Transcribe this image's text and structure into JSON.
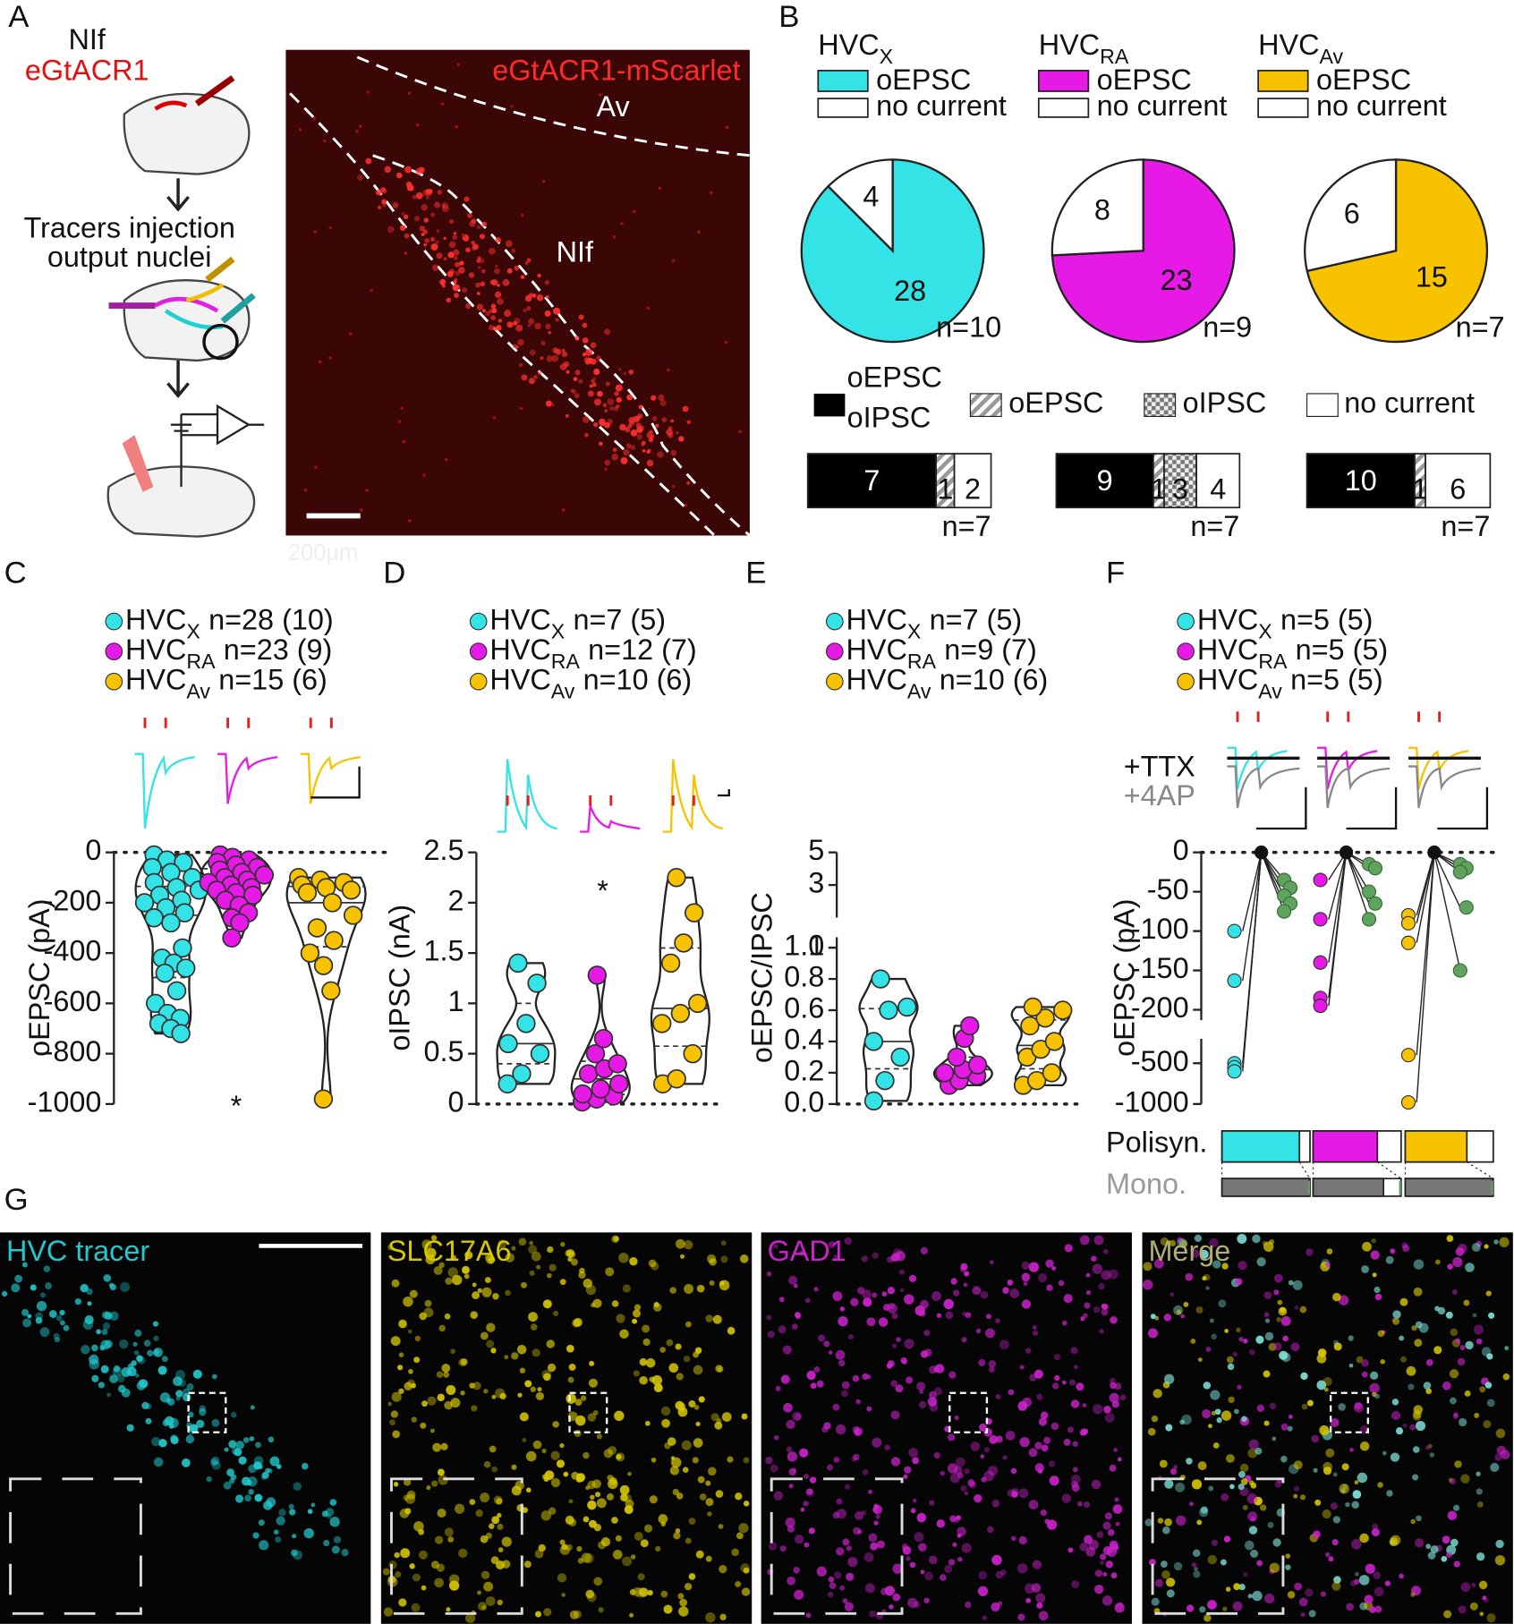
{
  "groups": [
    {
      "name": "HVC",
      "sub": "X",
      "color": "#33e3e6"
    },
    {
      "name": "HVC",
      "sub": "RA",
      "color": "#e619e6"
    },
    {
      "name": "HVC",
      "sub": "Av",
      "color": "#f7c200"
    }
  ],
  "panel_labels": [
    "A",
    "B",
    "C",
    "D",
    "E",
    "F",
    "G"
  ],
  "panel_a": {
    "top_label": "NIf",
    "virus": "eGtACR1",
    "step2": [
      "Tracers injection",
      "output nuclei"
    ],
    "image_label": "eGtACR1-mScarlet",
    "regions": [
      "Av",
      "NIf"
    ],
    "scale_bar": "200µm"
  },
  "panel_b": {
    "legend": [
      "oEPSC",
      "no current"
    ],
    "pies": [
      {
        "values": [
          28,
          4
        ],
        "n": "n=10"
      },
      {
        "values": [
          23,
          8
        ],
        "n": "n=9"
      },
      {
        "values": [
          15,
          6
        ],
        "n": "n=7"
      }
    ],
    "bar_legend": {
      "both": [
        "oEPSC",
        "oIPSC"
      ],
      "epsc": "oEPSC",
      "ipsc": "oIPSC",
      "none": "no current"
    },
    "bars": [
      {
        "values": [
          7,
          1,
          null,
          2
        ],
        "n": "n=7"
      },
      {
        "values": [
          9,
          1,
          3,
          4
        ],
        "n": "n=7"
      },
      {
        "values": [
          10,
          1,
          null,
          6
        ],
        "n": "n=7"
      }
    ]
  },
  "panel_c": {
    "ylabel": "oEPSC (pA)",
    "ylim": [
      -1000,
      0
    ],
    "yticks": [
      0,
      -200,
      -400,
      -600,
      -800,
      -1000
    ],
    "legend": [
      "n=28 (10)",
      "n=23 (9)",
      "n=15 (6)"
    ],
    "marker": "*",
    "values": [
      [
        -10,
        -30,
        -40,
        -60,
        -80,
        -100,
        -120,
        -140,
        -150,
        -170,
        -190,
        -200,
        -220,
        -240,
        -260,
        -280,
        -380,
        -420,
        -440,
        -460,
        -480,
        -550,
        -600,
        -640,
        -660,
        -680,
        -700,
        -720
      ],
      [
        -10,
        -20,
        -30,
        -40,
        -50,
        -60,
        -70,
        -80,
        -90,
        -100,
        -110,
        -120,
        -130,
        -140,
        -150,
        -160,
        -170,
        -190,
        -210,
        -240,
        -260,
        -280,
        -340
      ],
      [
        -100,
        -110,
        -120,
        -130,
        -140,
        -150,
        -160,
        -200,
        -250,
        -300,
        -350,
        -400,
        -450,
        -550,
        -980
      ]
    ]
  },
  "panel_d": {
    "ylabel": "oIPSC (nA)",
    "ylim": [
      0,
      2.5
    ],
    "yticks": [
      0,
      0.5,
      1,
      1.5,
      2,
      2.5
    ],
    "legend": [
      "n=7 (5)",
      "n=12 (7)",
      "n=10 (6)"
    ],
    "marker": "*",
    "values": [
      [
        0.2,
        0.3,
        0.5,
        0.6,
        0.8,
        1.2,
        1.4
      ],
      [
        0.02,
        0.05,
        0.08,
        0.1,
        0.15,
        0.2,
        0.3,
        0.35,
        0.4,
        0.5,
        0.65,
        1.28
      ],
      [
        0.2,
        0.25,
        0.5,
        0.8,
        0.9,
        1.0,
        1.4,
        1.6,
        1.9,
        2.25
      ]
    ]
  },
  "panel_e": {
    "ylabel": "oEPSC/IPSC",
    "ylim": [
      0,
      1
    ],
    "ylim_top": [
      1,
      5
    ],
    "yticks": [
      {
        "value": 0,
        "label": "0.0"
      },
      {
        "value": 0.2,
        "label": "0.2"
      },
      {
        "value": 0.4,
        "label": "0.4"
      },
      {
        "value": 0.6,
        "label": "0.6"
      },
      {
        "value": 0.8,
        "label": "0.8"
      },
      {
        "value": 1,
        "label": "1.0"
      }
    ],
    "yticks_top": [
      1,
      3,
      5
    ],
    "legend": [
      "n=7 (5)",
      "n=9 (7)",
      "n=10 (6)"
    ],
    "values": [
      [
        0.02,
        0.15,
        0.3,
        0.4,
        0.6,
        0.62,
        0.8
      ],
      [
        0.12,
        0.15,
        0.18,
        0.2,
        0.22,
        0.25,
        0.3,
        0.42,
        0.5
      ],
      [
        0.12,
        0.15,
        0.2,
        0.3,
        0.35,
        0.4,
        0.5,
        0.55,
        0.6,
        0.62
      ]
    ]
  },
  "panel_f": {
    "ylabel": "oEPSC (pA)",
    "yticks": [
      0,
      -50,
      -100,
      -150,
      -200,
      -500,
      -1000
    ],
    "legend": [
      "n=5 (5)",
      "n=5 (5)",
      "n=5 (5)"
    ],
    "ttx_label": "+TTX",
    "ap4_label": "+4AP",
    "ap4_color": "#5fa35f",
    "control": [
      [
        -100,
        -163,
        -500,
        -550,
        -600
      ],
      [
        -35,
        -85,
        -140,
        -185,
        -195
      ],
      [
        -80,
        -90,
        -115,
        -400,
        -980
      ]
    ],
    "ttx": [
      [
        0,
        0,
        0,
        0,
        0
      ],
      [
        0,
        0,
        0,
        0,
        0
      ],
      [
        0,
        0,
        0,
        0,
        0
      ]
    ],
    "ap4": [
      [
        -35,
        -45,
        -55,
        -65,
        -75
      ],
      [
        -15,
        -20,
        -50,
        -65,
        -85
      ],
      [
        -15,
        -20,
        -25,
        -70,
        -150
      ]
    ],
    "polisyn_label": "Polisyn.",
    "mono_label": "Mono.",
    "polisyn": [
      0.88,
      0.73,
      0.7
    ],
    "mono": [
      0.99,
      0.8,
      0.99
    ]
  },
  "panel_g": {
    "labels": [
      "HVC tracer",
      "SLC17A6",
      "GAD1",
      "Merge"
    ],
    "colors": [
      "#22c8cc",
      "#d8c800",
      "#cc22cc",
      "#b0b070"
    ]
  }
}
